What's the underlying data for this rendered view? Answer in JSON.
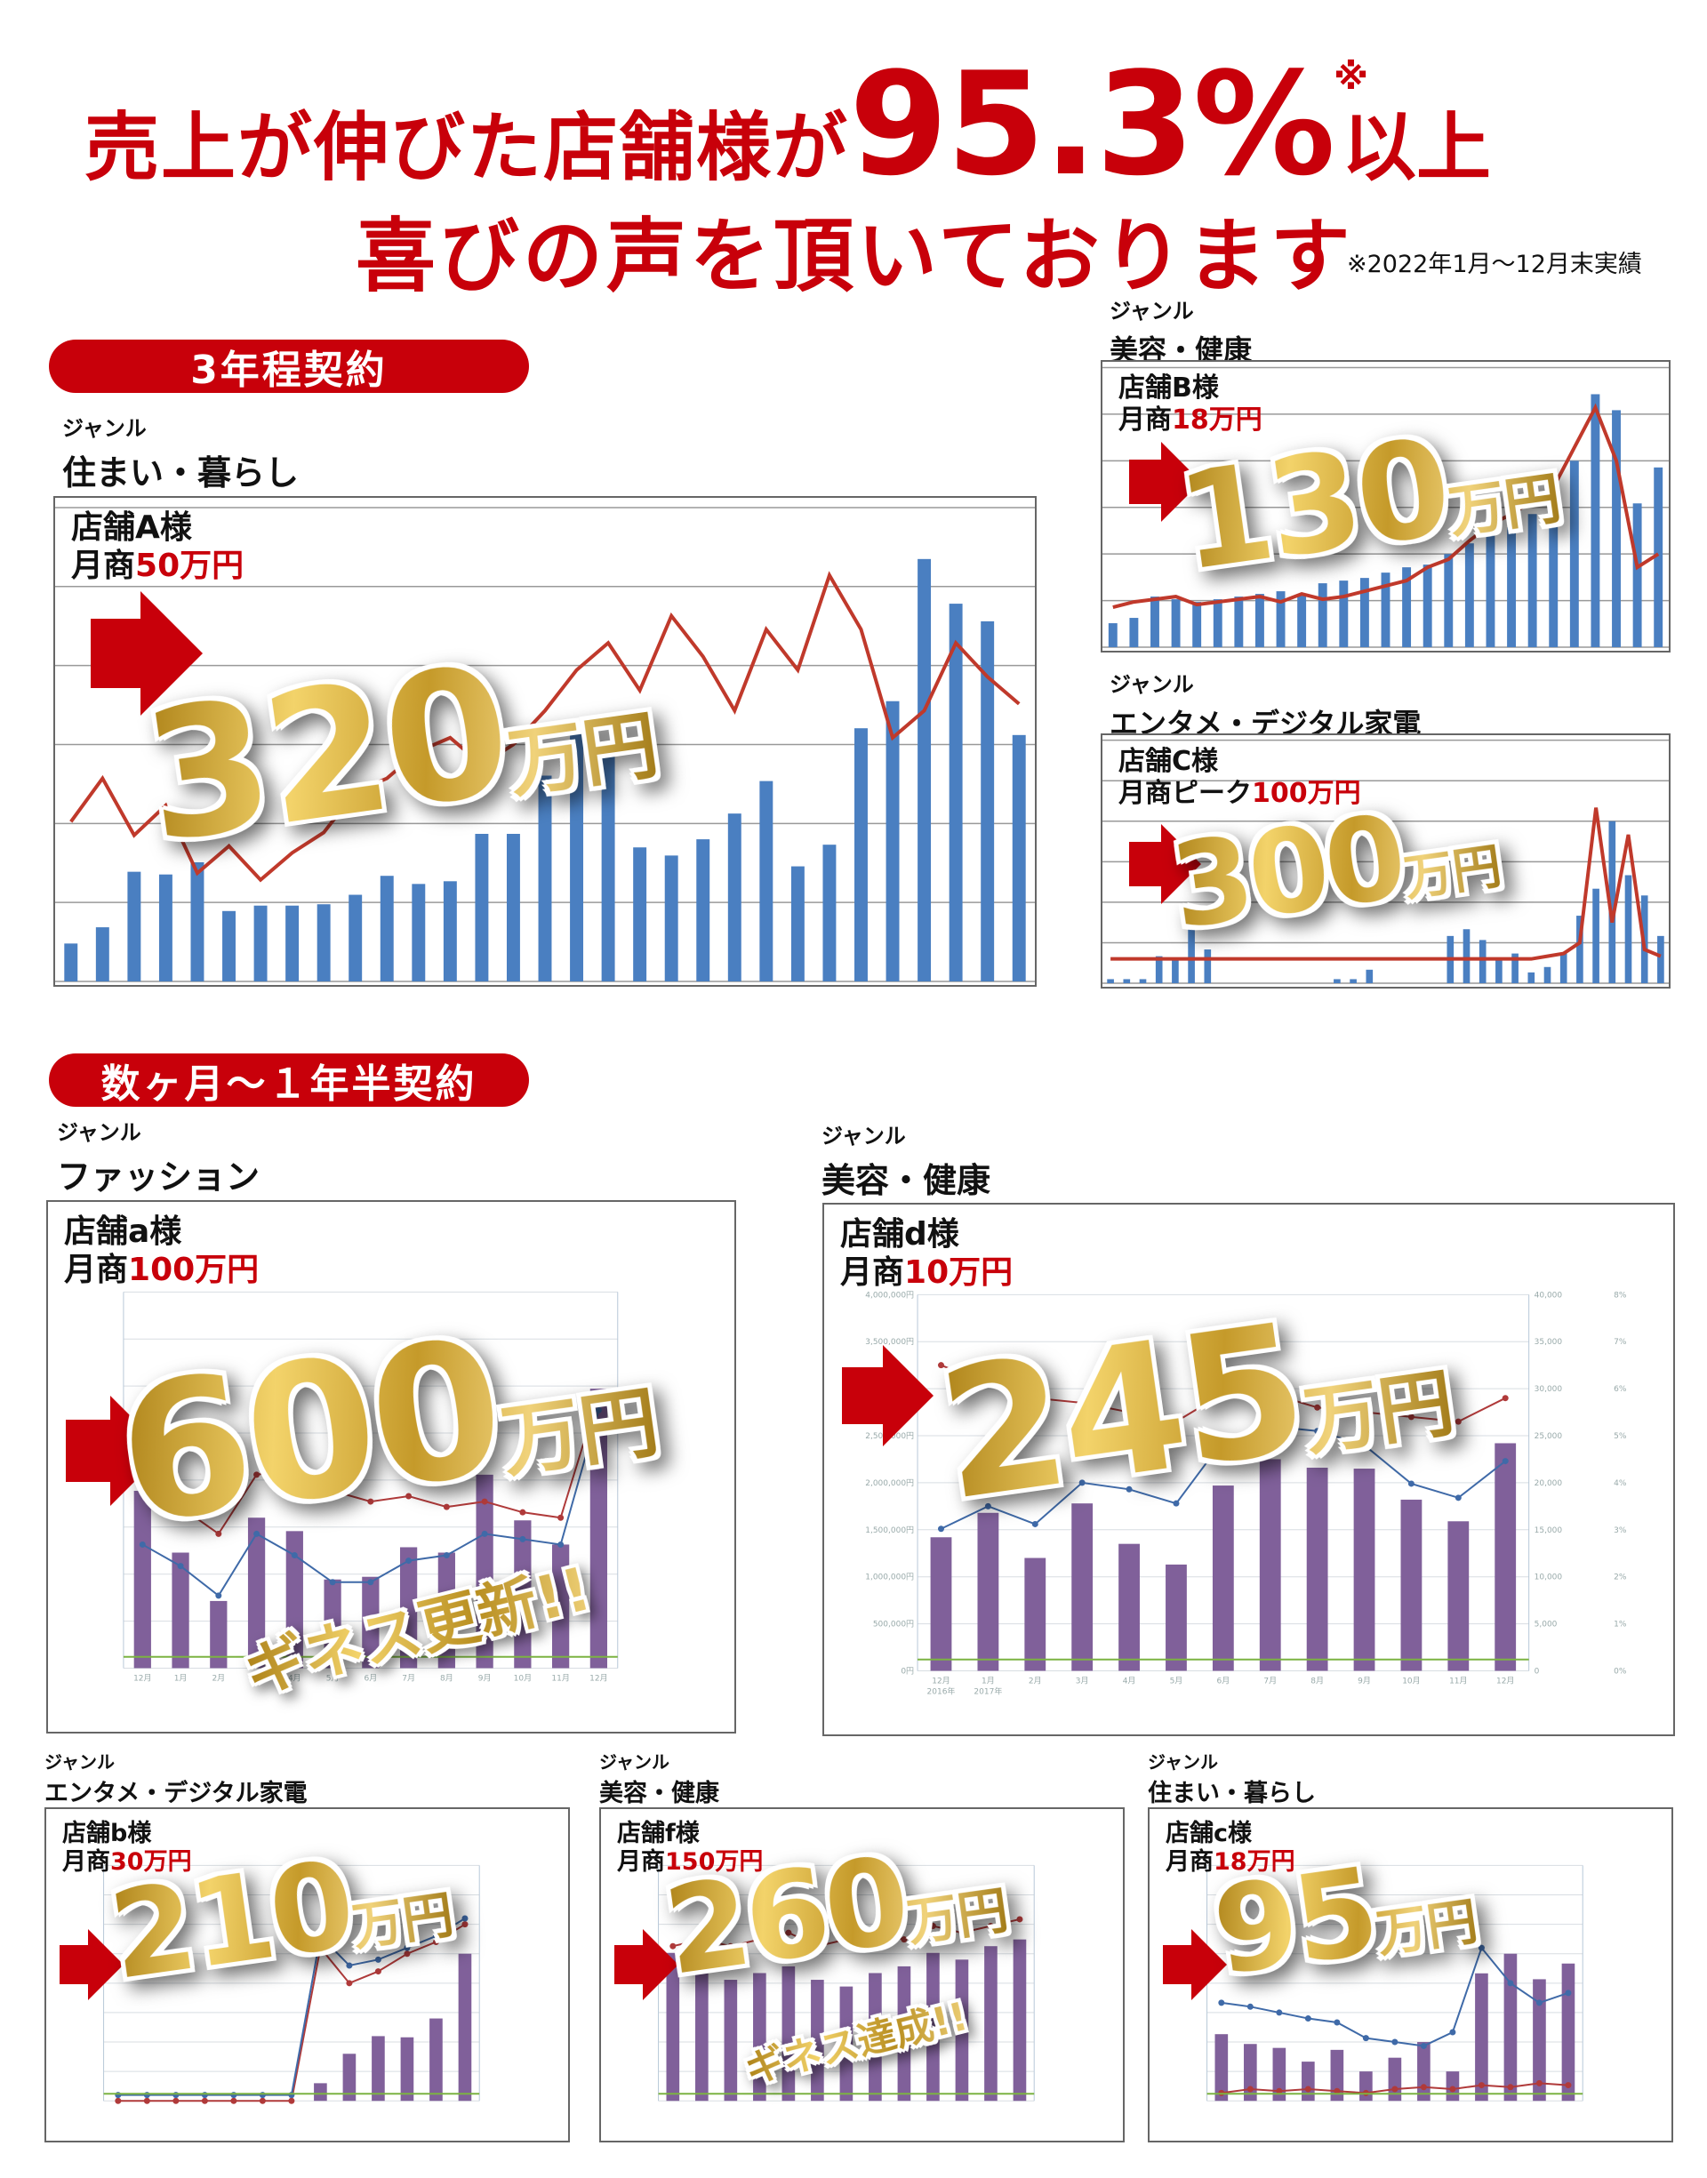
{
  "headline": {
    "line1_prefix": "売上が伸びた店舗様が",
    "rate": "95.3%",
    "rate_mark": "※",
    "line1_suffix": "以上",
    "line2": "喜びの声を頂いております",
    "note": "※2022年1月～12月末実績"
  },
  "colors": {
    "accent_red": "#c8000a",
    "bar_blue": "#4a7fc1",
    "line_red": "#c0392b",
    "bar_purple": "#80609a",
    "line_blue": "#3f6aa8",
    "line_green": "#7cb342",
    "gold": "#d4af37"
  },
  "sections": [
    {
      "label": "3年程契約"
    },
    {
      "label": "数ヶ月〜１年半契約"
    }
  ],
  "genre_label": "ジャンル",
  "stores": {
    "A": {
      "genre": "住まい・暮らし",
      "name": "店舗A様",
      "before_label": "月商",
      "before": "50万円",
      "after_num": "320",
      "after_unit": "万円"
    },
    "B": {
      "genre": "美容・健康",
      "name": "店舗B様",
      "before_label": "月商",
      "before": "18万円",
      "after_num": "130",
      "after_unit": "万円"
    },
    "C": {
      "genre": "エンタメ・デジタル家電",
      "name": "店舗C様",
      "before_label": "月商ピーク",
      "before": "100万円",
      "after_num": "300",
      "after_unit": "万円"
    },
    "a": {
      "genre": "ファッション",
      "name": "店舗a様",
      "before_label": "月商",
      "before": "100万円",
      "after_num": "600",
      "after_unit": "万円",
      "badge": "ギネス更新!!"
    },
    "d": {
      "genre": "美容・健康",
      "name": "店舗d様",
      "before_label": "月商",
      "before": "10万円",
      "after_num": "245",
      "after_unit": "万円"
    },
    "b": {
      "genre": "エンタメ・デジタル家電",
      "name": "店舗b様",
      "before_label": "月商",
      "before": "30万円",
      "after_num": "210",
      "after_unit": "万円"
    },
    "f": {
      "genre": "美容・健康",
      "name": "店舗f様",
      "before_label": "月商",
      "before": "150万円",
      "after_num": "260",
      "after_unit": "万円",
      "badge": "ギネス達成!!"
    },
    "c": {
      "genre": "住まい・暮らし",
      "name": "店舗c様",
      "before_label": "月商",
      "before": "18万円",
      "after_num": "95",
      "after_unit": "万円"
    }
  },
  "chart_data": [
    {
      "id": "A",
      "type": "bar",
      "style": "blue",
      "grid": true,
      "ylim": [
        0,
        350
      ],
      "values": [
        28,
        40,
        81,
        79,
        88,
        52,
        56,
        56,
        57,
        64,
        78,
        72,
        74,
        109,
        109,
        152,
        187,
        167,
        99,
        93,
        105,
        124,
        148,
        85,
        101,
        187,
        207,
        312,
        279,
        266,
        182
      ],
      "line": [
        118,
        150,
        108,
        130,
        80,
        100,
        75,
        95,
        110,
        140,
        150,
        170,
        180,
        160,
        175,
        200,
        230,
        250,
        215,
        270,
        240,
        200,
        260,
        230,
        300,
        260,
        180,
        200,
        250,
        225,
        205
      ]
    },
    {
      "id": "B",
      "type": "bar",
      "style": "blue",
      "grid": true,
      "ylim": [
        0,
        210
      ],
      "values": [
        18,
        22,
        38,
        36,
        34,
        36,
        38,
        40,
        42,
        40,
        48,
        50,
        52,
        56,
        60,
        62,
        70,
        78,
        84,
        90,
        100,
        120,
        140,
        190,
        178,
        108,
        135
      ],
      "line": [
        30,
        34,
        36,
        38,
        32,
        34,
        36,
        38,
        34,
        40,
        36,
        38,
        42,
        46,
        50,
        60,
        66,
        80,
        92,
        100,
        110,
        120,
        150,
        180,
        140,
        60,
        70
      ]
    },
    {
      "id": "C",
      "type": "bar",
      "style": "blue",
      "grid": true,
      "ylim": [
        0,
        180
      ],
      "values": [
        3,
        3,
        3,
        20,
        18,
        40,
        25,
        0,
        0,
        0,
        0,
        0,
        0,
        0,
        3,
        3,
        10,
        0,
        0,
        0,
        0,
        35,
        40,
        32,
        18,
        22,
        8,
        12,
        22,
        50,
        70,
        120,
        80,
        65,
        35
      ],
      "line": [
        18,
        18,
        18,
        18,
        18,
        18,
        18,
        18,
        18,
        18,
        18,
        18,
        18,
        18,
        18,
        18,
        18,
        18,
        18,
        18,
        18,
        18,
        18,
        18,
        18,
        18,
        18,
        20,
        22,
        30,
        130,
        45,
        110,
        25,
        20
      ]
    },
    {
      "id": "a",
      "type": "bar",
      "style": "purple",
      "grid": true,
      "ylim": [
        0,
        7000000
      ],
      "categories": [
        "12月",
        "1月",
        "2月",
        "3月",
        "4月",
        "5月",
        "6月",
        "7月",
        "8月",
        "9月",
        "10月",
        "11月",
        "12月"
      ],
      "values": [
        3300000,
        2150000,
        1250000,
        2800000,
        2550000,
        1650000,
        1700000,
        2250000,
        2150000,
        3600000,
        2750000,
        2300000,
        5200000
      ],
      "line": [
        4900000,
        3000000,
        2500000,
        3600000,
        3700000,
        3300000,
        3100000,
        3200000,
        3000000,
        3100000,
        2900000,
        2800000,
        5100000
      ],
      "line2": [
        2300000,
        1900000,
        1350000,
        2500000,
        2100000,
        1600000,
        1600000,
        2000000,
        2100000,
        2500000,
        2400000,
        2300000,
        4800000
      ]
    },
    {
      "id": "d",
      "type": "bar",
      "style": "purple",
      "grid": true,
      "ylim": [
        0,
        4000000
      ],
      "y_ticks": [
        "0円",
        "500,000円",
        "1,000,000円",
        "1,500,000円",
        "2,000,000円",
        "2,500,000円",
        "3,000,000円",
        "3,500,000円",
        "4,000,000円"
      ],
      "y2_ticks": [
        "0",
        "5,000",
        "10,000",
        "15,000",
        "20,000",
        "25,000",
        "30,000",
        "35,000",
        "40,000"
      ],
      "y3_ticks": [
        "0%",
        "1%",
        "2%",
        "3%",
        "4%",
        "5%",
        "6%",
        "7%",
        "8%"
      ],
      "categories": [
        "12月",
        "1月",
        "2月",
        "3月",
        "4月",
        "5月",
        "6月",
        "7月",
        "8月",
        "9月",
        "10月",
        "11月",
        "12月"
      ],
      "sub_categories": [
        "2016年",
        "2017年"
      ],
      "values": [
        1420000,
        1680000,
        1200000,
        1780000,
        1350000,
        1130000,
        1970000,
        2250000,
        2160000,
        2150000,
        1820000,
        1590000,
        2420000
      ],
      "line": [
        3250000,
        3050000,
        2900000,
        2850000,
        2750000,
        2650000,
        2950000,
        2950000,
        2800000,
        2750000,
        2700000,
        2650000,
        2900000
      ],
      "line2": [
        1510000,
        1750000,
        1560000,
        2000000,
        1930000,
        1780000,
        2450000,
        2600000,
        2550000,
        2400000,
        1990000,
        1840000,
        2230000
      ]
    },
    {
      "id": "b",
      "type": "bar",
      "style": "purple",
      "grid": true,
      "ylim": [
        0,
        4000000
      ],
      "values": [
        0,
        0,
        0,
        0,
        0,
        0,
        0,
        300000,
        800000,
        1100000,
        1080000,
        1400000,
        2500000
      ],
      "line": [
        0,
        0,
        0,
        0,
        0,
        0,
        0,
        2600000,
        2000000,
        2200000,
        2500000,
        2700000,
        3000000
      ],
      "line2": [
        100000,
        100000,
        100000,
        100000,
        100000,
        100000,
        100000,
        2800000,
        2300000,
        2400000,
        2600000,
        2800000,
        3100000
      ]
    },
    {
      "id": "f",
      "type": "bar",
      "style": "purple",
      "grid": true,
      "ylim": [
        0,
        3500000
      ],
      "values": [
        2200000,
        1900000,
        1800000,
        1900000,
        2000000,
        1800000,
        1700000,
        1900000,
        2000000,
        2200000,
        2100000,
        2300000,
        2400000
      ],
      "line": [
        2300000,
        2400000,
        2300000,
        2400000,
        2500000,
        2300000,
        2400000,
        2500000,
        2400000,
        2600000,
        2500000,
        2600000,
        2700000
      ]
    },
    {
      "id": "c",
      "type": "bar",
      "style": "purple",
      "grid": true,
      "ylim": [
        0,
        1200000
      ],
      "values": [
        340000,
        290000,
        270000,
        200000,
        260000,
        150000,
        220000,
        300000,
        150000,
        650000,
        750000,
        620000,
        700000
      ],
      "line": [
        40000,
        60000,
        50000,
        60000,
        50000,
        40000,
        60000,
        70000,
        60000,
        80000,
        70000,
        90000,
        80000
      ],
      "line2": [
        500000,
        480000,
        450000,
        420000,
        400000,
        320000,
        300000,
        280000,
        350000,
        780000,
        600000,
        500000,
        550000
      ]
    }
  ]
}
